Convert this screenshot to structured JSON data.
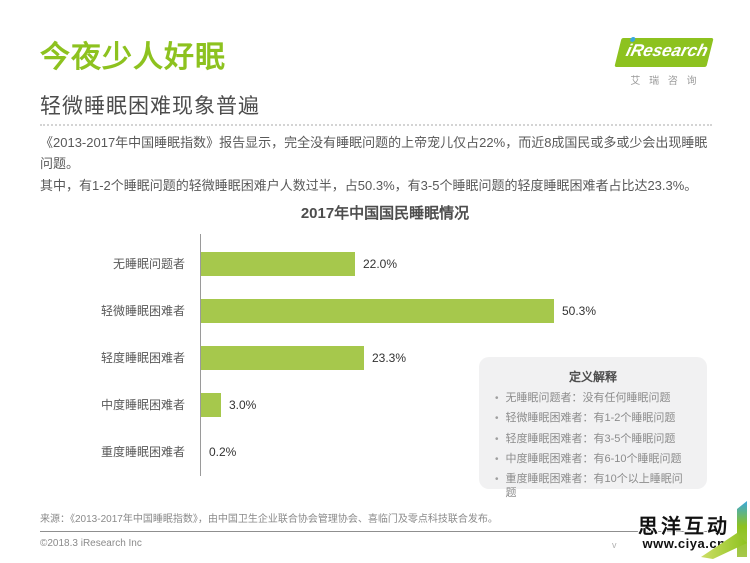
{
  "page": {
    "title": "今夜少人好眠",
    "subtitle": "轻微睡眠困难现象普遍",
    "intro_para1": "《2013-2017年中国睡眠指数》报告显示，完全没有睡眠问题的上帝宠儿仅占22%，而近8成国民或多或少会出现睡眠问题。",
    "intro_para2": "其中，有1-2个睡眠问题的轻微睡眠困难户人数过半，占50.3%，有3-5个睡眠问题的轻度睡眠困难者占比达23.3%。"
  },
  "logo": {
    "brand_text": "iResearch",
    "subtext": "艾 瑞 咨 询"
  },
  "chart_data": {
    "type": "bar",
    "orientation": "horizontal",
    "title": "2017年中国国民睡眠情况",
    "categories": [
      "无睡眠问题者",
      "轻微睡眠困难者",
      "轻度睡眠困难者",
      "中度睡眠困难者",
      "重度睡眠困难者"
    ],
    "values": [
      22.0,
      50.3,
      23.3,
      3.0,
      0.2
    ],
    "value_labels": [
      "22.0%",
      "50.3%",
      "23.3%",
      "3.0%",
      "0.2%"
    ],
    "xlim": [
      0,
      55
    ],
    "grid": false,
    "legend": "none",
    "bar_color": "#a6c84c"
  },
  "definitions": {
    "title": "定义解释",
    "items": [
      "无睡眠问题者：没有任何睡眠问题",
      "轻微睡眠困难者：有1-2个睡眠问题",
      "轻度睡眠困难者：有3-5个睡眠问题",
      "中度睡眠困难者：有6-10个睡眠问题",
      "重度睡眠困难者：有10个以上睡眠问题"
    ]
  },
  "footer": {
    "source": "来源：《2013-2017年中国睡眠指数》，由中国卫生企业联合协会管理协会、喜临门及零点科技联合发布。",
    "copyright": "©2018.3 iResearch Inc",
    "version_mark": "v"
  },
  "watermark": {
    "line1": "思洋互动",
    "line2": "www.ciya.cn"
  },
  "colors": {
    "brand_green": "#8dc21f",
    "bar_green": "#a6c84c",
    "accent_blue": "#3aa7dd",
    "heading_gray": "#4d4d4d",
    "body_gray": "#595959",
    "box_bg": "#f1f1f2"
  }
}
